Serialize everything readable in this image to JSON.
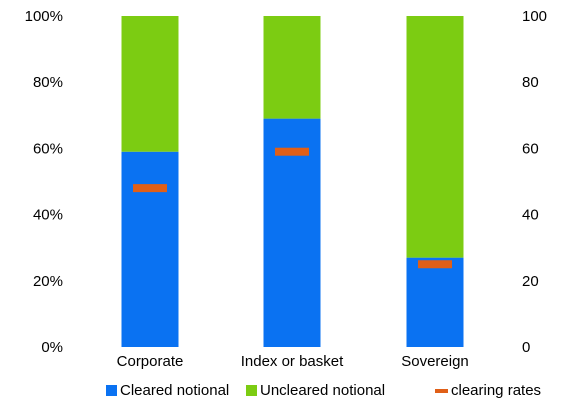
{
  "chart_data": {
    "type": "bar",
    "stacked": true,
    "title": "",
    "categories": [
      "Corporate",
      "Index or basket",
      "Sovereign"
    ],
    "series": [
      {
        "name": "Cleared notional",
        "type": "bar",
        "axis": "left",
        "values": [
          59,
          69,
          27
        ],
        "color": "#0a72f2"
      },
      {
        "name": "Uncleared notional",
        "type": "bar",
        "axis": "left",
        "values": [
          41,
          31,
          73
        ],
        "color": "#7ccc12"
      },
      {
        "name": "clearing rates",
        "type": "marker",
        "axis": "right",
        "values": [
          48,
          59,
          25
        ],
        "color": "#e05f17"
      }
    ],
    "y_left": {
      "ylim": [
        0,
        100
      ],
      "ticks": [
        "0%",
        "20%",
        "40%",
        "60%",
        "80%",
        "100%"
      ]
    },
    "y_right": {
      "ylim": [
        0,
        100
      ],
      "ticks": [
        "0",
        "20",
        "40",
        "60",
        "80",
        "100"
      ]
    },
    "grid": false,
    "legend_position": "bottom"
  }
}
